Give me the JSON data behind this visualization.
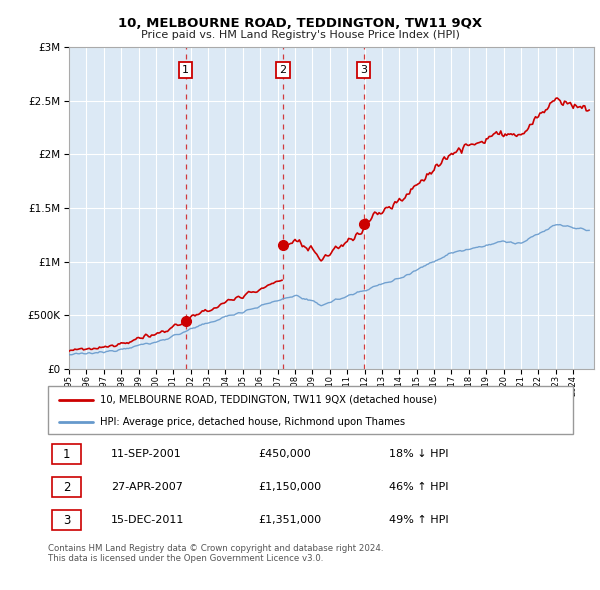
{
  "title": "10, MELBOURNE ROAD, TEDDINGTON, TW11 9QX",
  "subtitle": "Price paid vs. HM Land Registry's House Price Index (HPI)",
  "background_color": "#ffffff",
  "plot_bg_color": "#dce9f5",
  "grid_color": "#ffffff",
  "sale_color": "#cc0000",
  "hpi_color": "#6699cc",
  "sale_label": "10, MELBOURNE ROAD, TEDDINGTON, TW11 9QX (detached house)",
  "hpi_label": "HPI: Average price, detached house, Richmond upon Thames",
  "transactions": [
    {
      "num": 1,
      "date": "11-SEP-2001",
      "price": 450000,
      "hpi_rel": "18% ↓ HPI",
      "year": 2001.71
    },
    {
      "num": 2,
      "date": "27-APR-2007",
      "price": 1150000,
      "hpi_rel": "46% ↑ HPI",
      "year": 2007.32
    },
    {
      "num": 3,
      "date": "15-DEC-2011",
      "price": 1351000,
      "hpi_rel": "49% ↑ HPI",
      "year": 2011.96
    }
  ],
  "footer": "Contains HM Land Registry data © Crown copyright and database right 2024.\nThis data is licensed under the Open Government Licence v3.0.",
  "ylim": [
    0,
    3000000
  ],
  "xlim_start": 1995.0,
  "xlim_end": 2025.2,
  "yticks": [
    0,
    500000,
    1000000,
    1500000,
    2000000,
    2500000,
    3000000
  ]
}
